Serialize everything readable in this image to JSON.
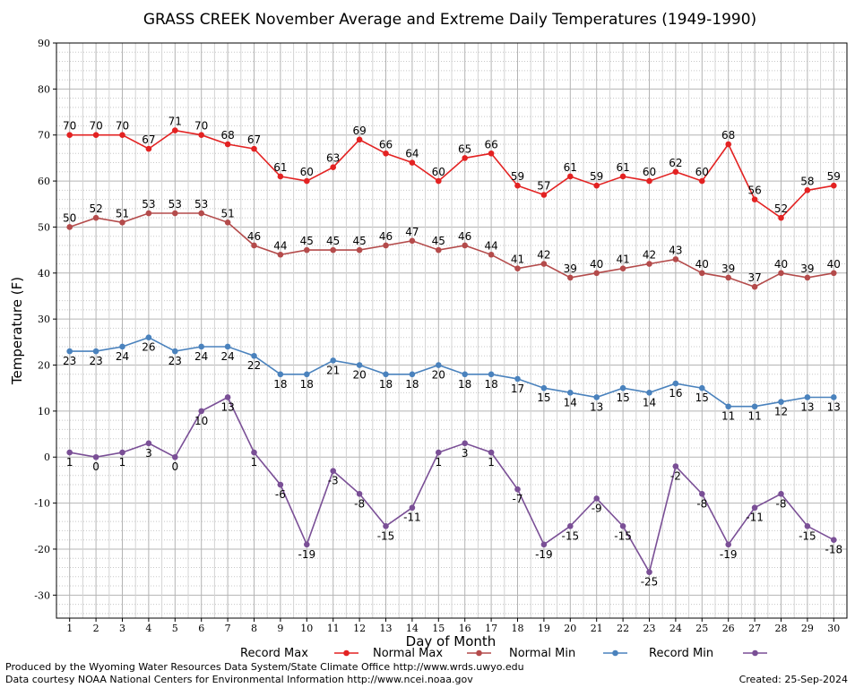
{
  "chart_data": {
    "type": "line",
    "title": "GRASS CREEK November Average and Extreme Daily Temperatures (1949-1990)",
    "xlabel": "Day of Month",
    "ylabel": "Temperature (F)",
    "ylim": [
      -35,
      90
    ],
    "yticks": [
      -30,
      -20,
      -10,
      0,
      10,
      20,
      30,
      40,
      50,
      60,
      70,
      80,
      90
    ],
    "x": [
      1,
      2,
      3,
      4,
      5,
      6,
      7,
      8,
      9,
      10,
      11,
      12,
      13,
      14,
      15,
      16,
      17,
      18,
      19,
      20,
      21,
      22,
      23,
      24,
      25,
      26,
      27,
      28,
      29,
      30
    ],
    "grid": true,
    "legend_position": "bottom",
    "series": [
      {
        "name": "Record Max",
        "color": "#e32222",
        "label_position": "above",
        "values": [
          70,
          70,
          70,
          67,
          71,
          70,
          68,
          67,
          61,
          60,
          63,
          69,
          66,
          64,
          60,
          65,
          66,
          59,
          57,
          61,
          59,
          61,
          60,
          62,
          60,
          68,
          56,
          52,
          58,
          59
        ]
      },
      {
        "name": "Normal Max",
        "color": "#b44b4b",
        "label_position": "above",
        "values": [
          50,
          52,
          51,
          53,
          53,
          53,
          51,
          46,
          44,
          45,
          45,
          45,
          46,
          47,
          45,
          46,
          44,
          41,
          42,
          39,
          40,
          41,
          42,
          43,
          40,
          39,
          37,
          40,
          39,
          40
        ]
      },
      {
        "name": "Normal Min",
        "color": "#4a82bd",
        "label_position": "below",
        "values": [
          23,
          23,
          24,
          26,
          23,
          24,
          24,
          22,
          18,
          18,
          21,
          20,
          18,
          18,
          20,
          18,
          18,
          17,
          15,
          14,
          13,
          15,
          14,
          16,
          15,
          11,
          11,
          12,
          13,
          13
        ]
      },
      {
        "name": "Record Min",
        "color": "#7a4f96",
        "label_position": "below",
        "values": [
          1,
          0,
          1,
          3,
          0,
          10,
          13,
          1,
          -6,
          -19,
          -3,
          -8,
          -15,
          -11,
          1,
          3,
          1,
          -7,
          -19,
          -15,
          -9,
          -15,
          -25,
          -2,
          -8,
          -19,
          -11,
          -8,
          -15,
          -18
        ]
      }
    ]
  },
  "footer": {
    "produced_by": "Produced by the Wyoming Water Resources Data System/State Climate Office http://www.wrds.uwyo.edu",
    "data_courtesy": "Data courtesy NOAA National Centers for Environmental Information http://www.ncei.noaa.gov",
    "created": "Created:  25-Sep-2024"
  }
}
